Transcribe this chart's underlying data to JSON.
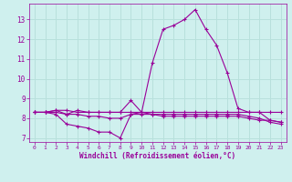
{
  "xlabel": "Windchill (Refroidissement éolien,°C)",
  "background_color": "#cff0ee",
  "grid_color": "#b8e0dc",
  "line_color": "#990099",
  "xlim": [
    -0.5,
    23.5
  ],
  "ylim": [
    6.8,
    13.8
  ],
  "yticks": [
    7,
    8,
    9,
    10,
    11,
    12,
    13
  ],
  "xticks": [
    0,
    1,
    2,
    3,
    4,
    5,
    6,
    7,
    8,
    9,
    10,
    11,
    12,
    13,
    14,
    15,
    16,
    17,
    18,
    19,
    20,
    21,
    22,
    23
  ],
  "series": [
    [
      8.3,
      8.3,
      8.4,
      8.2,
      8.4,
      8.3,
      8.3,
      8.3,
      8.3,
      8.3,
      8.3,
      8.3,
      8.3,
      8.3,
      8.3,
      8.3,
      8.3,
      8.3,
      8.3,
      8.3,
      8.3,
      8.3,
      8.3,
      8.3
    ],
    [
      8.3,
      8.3,
      8.2,
      7.7,
      7.6,
      7.5,
      7.3,
      7.3,
      7.0,
      8.2,
      8.3,
      10.8,
      12.5,
      12.7,
      13.0,
      13.5,
      12.5,
      11.7,
      10.3,
      8.5,
      8.3,
      8.3,
      7.9,
      7.8
    ],
    [
      8.3,
      8.3,
      8.4,
      8.4,
      8.3,
      8.3,
      8.3,
      8.3,
      8.3,
      8.9,
      8.3,
      8.2,
      8.1,
      8.1,
      8.1,
      8.1,
      8.1,
      8.1,
      8.1,
      8.1,
      8.0,
      7.9,
      7.9,
      7.8
    ],
    [
      8.3,
      8.3,
      8.3,
      8.2,
      8.2,
      8.1,
      8.1,
      8.0,
      8.0,
      8.2,
      8.2,
      8.2,
      8.2,
      8.2,
      8.2,
      8.2,
      8.2,
      8.2,
      8.2,
      8.2,
      8.1,
      8.0,
      7.8,
      7.7
    ]
  ]
}
